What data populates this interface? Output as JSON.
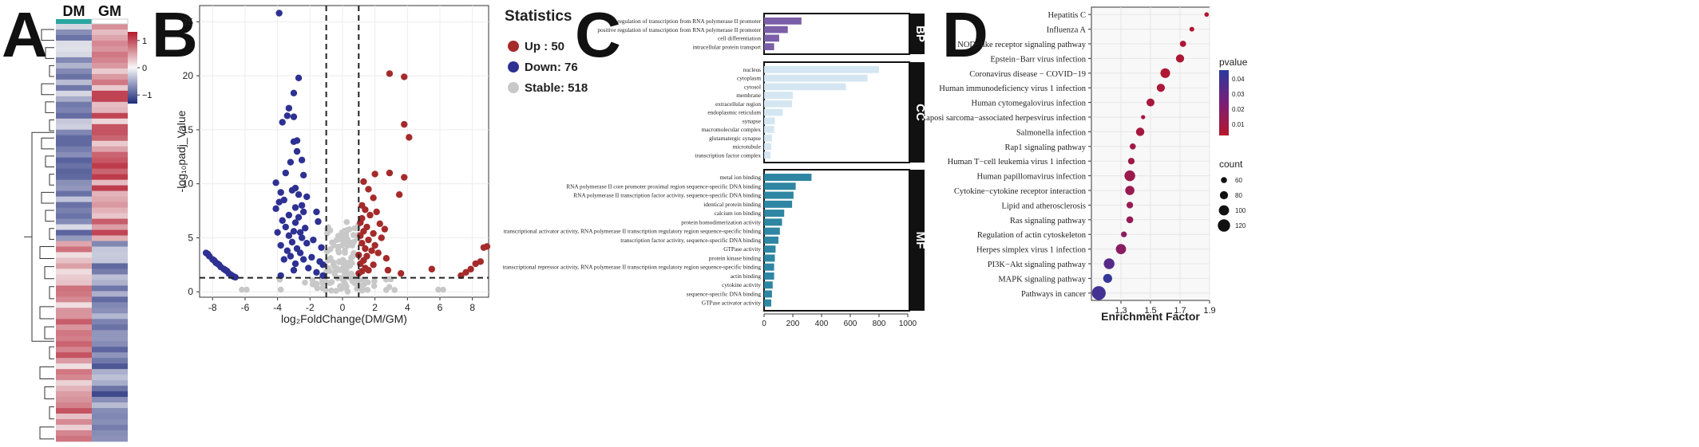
{
  "panels": {
    "a": "A",
    "b": "B",
    "c": "C",
    "d": "D"
  },
  "colors": {
    "up": "#a52a2a",
    "down": "#2e3192",
    "stable": "#c8c8c8",
    "bp": "#7b5ea7",
    "cc": "#d4e6f1",
    "mf": "#2e86a3",
    "heat_high": "#b2182b",
    "heat_mid": "#f7f7f7",
    "heat_low": "#1e2b7a"
  },
  "chart_data": [
    {
      "id": "A",
      "type": "heatmap",
      "columns": [
        "DM",
        "GM"
      ],
      "row_count": 75,
      "legend_ticks": [
        "1",
        "0",
        "−1"
      ],
      "value_range": [
        -1.4,
        1.4
      ]
    },
    {
      "id": "B",
      "type": "scatter",
      "xlabel": "log₂FoldChange(DM/GM)",
      "ylabel": "-log₁₀padj_Value",
      "xlim": [
        -8.8,
        9.0
      ],
      "ylim": [
        -0.5,
        26.5
      ],
      "xticks": [
        -8,
        -6,
        -4,
        -2,
        0,
        2,
        4,
        6,
        8
      ],
      "yticks": [
        0,
        5,
        10,
        15,
        20,
        25
      ],
      "legend_title": "Statistics",
      "legend": [
        {
          "key": "up",
          "label": "Up     : 50"
        },
        {
          "key": "down",
          "label": "Down: 76"
        },
        {
          "key": "stable",
          "label": "Stable: 518"
        }
      ],
      "vlines": [
        -1,
        1
      ],
      "hline": 1.3,
      "down_points": [
        [
          -3.9,
          25.8
        ],
        [
          -2.7,
          19.8
        ],
        [
          -3.0,
          18.4
        ],
        [
          -3.3,
          17.0
        ],
        [
          -3.0,
          16.2
        ],
        [
          -3.4,
          16.3
        ],
        [
          -3.7,
          15.7
        ],
        [
          -2.8,
          14.0
        ],
        [
          -3.0,
          13.9
        ],
        [
          -2.8,
          13.0
        ],
        [
          -2.5,
          12.2
        ],
        [
          -3.2,
          12.0
        ],
        [
          -3.5,
          11.0
        ],
        [
          -2.4,
          10.8
        ],
        [
          -4.1,
          10.1
        ],
        [
          -2.9,
          9.6
        ],
        [
          -3.1,
          9.4
        ],
        [
          -3.8,
          9.2
        ],
        [
          -2.7,
          9.0
        ],
        [
          -2.2,
          8.8
        ],
        [
          -3.6,
          8.5
        ],
        [
          -3.9,
          8.3
        ],
        [
          -2.5,
          8.0
        ],
        [
          -2.9,
          7.8
        ],
        [
          -4.1,
          7.7
        ],
        [
          -1.6,
          7.4
        ],
        [
          -2.4,
          7.4
        ],
        [
          -3.3,
          7.1
        ],
        [
          -2.7,
          6.9
        ],
        [
          -3.7,
          6.6
        ],
        [
          -1.5,
          6.5
        ],
        [
          -2.9,
          6.4
        ],
        [
          -3.5,
          6.0
        ],
        [
          -2.3,
          5.9
        ],
        [
          -3.0,
          5.6
        ],
        [
          -2.6,
          5.5
        ],
        [
          -4.0,
          5.5
        ],
        [
          -3.3,
          5.2
        ],
        [
          -2.5,
          5.0
        ],
        [
          -1.8,
          4.8
        ],
        [
          -3.1,
          4.6
        ],
        [
          -2.2,
          4.5
        ],
        [
          -3.8,
          4.3
        ],
        [
          -1.3,
          4.1
        ],
        [
          -2.8,
          4.0
        ],
        [
          -3.4,
          3.8
        ],
        [
          -2.6,
          3.6
        ],
        [
          -3.2,
          3.3
        ],
        [
          -1.9,
          3.2
        ],
        [
          -2.4,
          3.0
        ],
        [
          -3.6,
          3.0
        ],
        [
          -1.4,
          2.8
        ],
        [
          -2.9,
          2.6
        ],
        [
          -1.2,
          2.5
        ],
        [
          -2.1,
          2.2
        ],
        [
          -3.0,
          2.0
        ],
        [
          -1.6,
          1.8
        ],
        [
          -3.8,
          1.5
        ],
        [
          -1.2,
          1.5
        ],
        [
          -8.4,
          3.6
        ],
        [
          -8.2,
          3.3
        ],
        [
          -8.0,
          3.0
        ],
        [
          -7.8,
          2.7
        ],
        [
          -7.6,
          2.5
        ],
        [
          -7.5,
          2.3
        ],
        [
          -7.3,
          2.1
        ],
        [
          -7.1,
          1.9
        ],
        [
          -7.0,
          1.7
        ],
        [
          -6.8,
          1.5
        ],
        [
          -6.7,
          1.4
        ],
        [
          -8.3,
          3.5
        ],
        [
          -7.9,
          2.9
        ],
        [
          -7.7,
          2.6
        ],
        [
          -7.2,
          2.0
        ],
        [
          -6.9,
          1.6
        ],
        [
          -6.6,
          1.35
        ]
      ],
      "up_points": [
        [
          3.8,
          19.9
        ],
        [
          2.9,
          20.2
        ],
        [
          3.8,
          15.5
        ],
        [
          4.1,
          14.3
        ],
        [
          2.9,
          11.0
        ],
        [
          3.8,
          10.6
        ],
        [
          2.0,
          10.9
        ],
        [
          1.3,
          10.2
        ],
        [
          1.6,
          9.5
        ],
        [
          3.5,
          9.0
        ],
        [
          1.9,
          8.7
        ],
        [
          1.2,
          8.0
        ],
        [
          1.4,
          7.6
        ],
        [
          2.1,
          7.4
        ],
        [
          1.7,
          7.1
        ],
        [
          1.2,
          6.8
        ],
        [
          1.1,
          6.4
        ],
        [
          2.3,
          6.3
        ],
        [
          1.5,
          6.0
        ],
        [
          2.6,
          5.8
        ],
        [
          1.3,
          5.6
        ],
        [
          1.9,
          5.4
        ],
        [
          1.1,
          5.2
        ],
        [
          2.4,
          5.0
        ],
        [
          1.6,
          4.8
        ],
        [
          1.2,
          4.5
        ],
        [
          2.0,
          4.3
        ],
        [
          1.4,
          4.0
        ],
        [
          1.8,
          3.8
        ],
        [
          2.2,
          3.6
        ],
        [
          1.0,
          3.4
        ],
        [
          1.5,
          3.3
        ],
        [
          2.7,
          3.1
        ],
        [
          1.3,
          2.9
        ],
        [
          1.1,
          2.6
        ],
        [
          1.9,
          2.5
        ],
        [
          1.4,
          2.2
        ],
        [
          1.6,
          2.0
        ],
        [
          2.8,
          2.0
        ],
        [
          1.2,
          1.9
        ],
        [
          1.0,
          1.7
        ],
        [
          5.5,
          2.1
        ],
        [
          3.6,
          1.7
        ],
        [
          7.3,
          1.5
        ],
        [
          7.6,
          1.8
        ],
        [
          7.9,
          2.1
        ],
        [
          8.2,
          2.6
        ],
        [
          8.5,
          2.8
        ],
        [
          8.7,
          4.1
        ],
        [
          8.9,
          4.2
        ]
      ]
    },
    {
      "id": "C",
      "type": "bar",
      "orientation": "horizontal",
      "xlim": [
        0,
        1000
      ],
      "xticks": [
        0,
        200,
        400,
        600,
        800,
        1000
      ],
      "groups": [
        {
          "name": "BP",
          "color_key": "bp",
          "categories": [
            "regulation of transcription from RNA polymerase II promoter",
            "positive regulation of transcription from RNA polymerase II promoter",
            "cell differentiation",
            "intracellular protein transport"
          ],
          "values": [
            260,
            165,
            105,
            70
          ]
        },
        {
          "name": "CC",
          "color_key": "cc",
          "categories": [
            "nucleus",
            "cytoplasm",
            "cytosol",
            "membrane",
            "extracellular region",
            "endoplasmic reticulum",
            "synapse",
            "macromolecular complex",
            "glutamatergic synapse",
            "microtubule",
            "transcription factor complex"
          ],
          "values": [
            800,
            720,
            570,
            200,
            195,
            130,
            75,
            70,
            55,
            50,
            45
          ]
        },
        {
          "name": "MF",
          "color_key": "mf",
          "categories": [
            "metal ion binding",
            "RNA polymerase II core promoter proximal region sequence-specific DNA binding",
            "RNA polymerase II transcription factor activity, sequence-specific DNA binding",
            "identical protein binding",
            "calcium ion binding",
            "protein homodimerization activity",
            "transcriptional activator activity, RNA polymerase II transcription regulatory region sequence-specific binding",
            "transcription factor activity, sequence-specific DNA binding",
            "GTPase activity",
            "protein kinase binding",
            "transcriptional repressor activity, RNA polymerase II transcription regulatory region sequence-specific binding",
            "actin binding",
            "cytokine activity",
            "sequence-specific DNA binding",
            "GTPase activator activity"
          ],
          "values": [
            330,
            220,
            205,
            195,
            140,
            125,
            110,
            100,
            80,
            75,
            70,
            70,
            60,
            55,
            50
          ]
        }
      ]
    },
    {
      "id": "D",
      "type": "scatter",
      "xlabel": "Enrichment Factor",
      "xlim": [
        1.1,
        1.9
      ],
      "xticks": [
        1.3,
        1.5,
        1.7,
        1.9
      ],
      "pvalue_legend_title": "pvalue",
      "pvalue_ticks": [
        "0.04",
        "0.03",
        "0.02",
        "0.01"
      ],
      "count_legend_title": "count",
      "count_ticks": [
        60,
        80,
        100,
        120
      ],
      "terms": [
        {
          "name": "Hepatitis C",
          "x": 1.88,
          "count": 45,
          "pvalue": 0.001
        },
        {
          "name": "Influenza A",
          "x": 1.78,
          "count": 48,
          "pvalue": 0.002
        },
        {
          "name": "NOD−like receptor signaling pathway",
          "x": 1.72,
          "count": 62,
          "pvalue": 0.003
        },
        {
          "name": "Epstein−Barr virus infection",
          "x": 1.7,
          "count": 80,
          "pvalue": 0.003
        },
        {
          "name": "Coronavirus disease − COVID−19",
          "x": 1.6,
          "count": 95,
          "pvalue": 0.002
        },
        {
          "name": "Human immunodeficiency virus 1 infection",
          "x": 1.57,
          "count": 80,
          "pvalue": 0.004
        },
        {
          "name": "Human cytomegalovirus infection",
          "x": 1.5,
          "count": 78,
          "pvalue": 0.005
        },
        {
          "name": "Kaposi sarcoma−associated herpesvirus infection",
          "x": 1.45,
          "count": 42,
          "pvalue": 0.006
        },
        {
          "name": "Salmonella infection",
          "x": 1.43,
          "count": 82,
          "pvalue": 0.006
        },
        {
          "name": "Rap1 signaling pathway",
          "x": 1.38,
          "count": 60,
          "pvalue": 0.008
        },
        {
          "name": "Human T−cell leukemia virus 1 infection",
          "x": 1.37,
          "count": 65,
          "pvalue": 0.009
        },
        {
          "name": "Human papillomavirus infection",
          "x": 1.36,
          "count": 105,
          "pvalue": 0.01
        },
        {
          "name": "Cytokine−cytokine receptor interaction",
          "x": 1.36,
          "count": 90,
          "pvalue": 0.011
        },
        {
          "name": "Lipid and atherosclerosis",
          "x": 1.36,
          "count": 65,
          "pvalue": 0.012
        },
        {
          "name": "Ras signaling pathway",
          "x": 1.36,
          "count": 68,
          "pvalue": 0.013
        },
        {
          "name": "Regulation of actin cytoskeleton",
          "x": 1.32,
          "count": 58,
          "pvalue": 0.016
        },
        {
          "name": "Herpes simplex virus 1 infection",
          "x": 1.3,
          "count": 100,
          "pvalue": 0.016
        },
        {
          "name": "PI3K−Akt signaling pathway",
          "x": 1.22,
          "count": 105,
          "pvalue": 0.032
        },
        {
          "name": "MAPK signaling pathway",
          "x": 1.21,
          "count": 88,
          "pvalue": 0.042
        },
        {
          "name": "Pathways in cancer",
          "x": 1.15,
          "count": 135,
          "pvalue": 0.038
        }
      ]
    }
  ]
}
